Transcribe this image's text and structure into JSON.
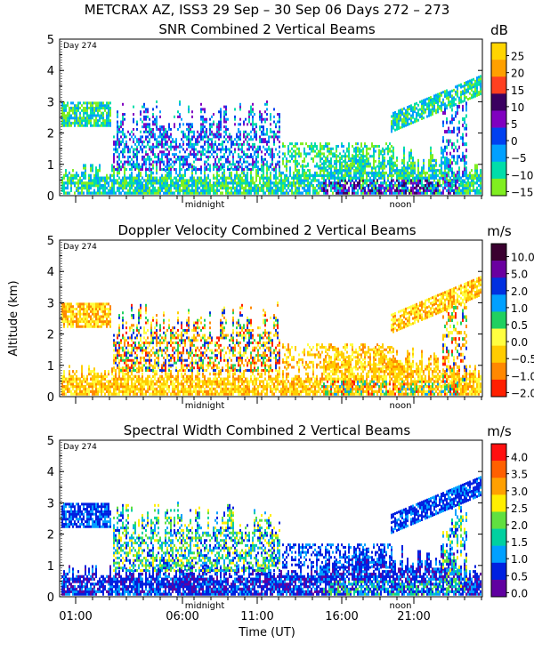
{
  "header": {
    "title": "METCRAX AZ, ISS3  29 Sep – 30 Sep 06 Days 272 – 273"
  },
  "chart_data": [
    {
      "type": "heatmap",
      "title": "SNR Combined 2 Vertical Beams",
      "units": "dB",
      "day_marker": "Day 274",
      "ylabel": "",
      "xlabel": "",
      "ylim": [
        0,
        5
      ],
      "yticks": [
        "0",
        "1",
        "2",
        "3",
        "4",
        "5"
      ],
      "midnight_label": "midnight",
      "noon_label": "noon",
      "colorbar": {
        "labels": [
          "25",
          "20",
          "15",
          "10",
          "5",
          "0",
          "−5",
          "−10",
          "−15"
        ],
        "colors": [
          "#ffd500",
          "#ffa000",
          "#ff4020",
          "#3a0060",
          "#8000c0",
          "#0040f0",
          "#00a0ff",
          "#00ddaa",
          "#80ee20"
        ]
      }
    },
    {
      "type": "heatmap",
      "title": "Doppler Velocity Combined 2 Vertical Beams",
      "units": "m/s",
      "day_marker": "Day 274",
      "ylabel": "Altitude (km)",
      "xlabel": "",
      "ylim": [
        0,
        5
      ],
      "yticks": [
        "0",
        "1",
        "2",
        "3",
        "4",
        "5"
      ],
      "midnight_label": "midnight",
      "noon_label": "noon",
      "colorbar": {
        "labels": [
          "10.0",
          "5.0",
          "2.0",
          "1.0",
          "0.5",
          "0.0",
          "−0.5",
          "−1.0",
          "−2.0"
        ],
        "colors": [
          "#3a0030",
          "#6a00a0",
          "#0030e0",
          "#00a0ff",
          "#20d060",
          "#ffff40",
          "#ffcc00",
          "#ff8800",
          "#ff2000"
        ]
      }
    },
    {
      "type": "heatmap",
      "title": "Spectral Width Combined 2 Vertical Beams",
      "units": "m/s",
      "day_marker": "Day 274",
      "ylabel": "",
      "xlabel": "Time (UT)",
      "ylim": [
        0,
        5
      ],
      "yticks": [
        "0",
        "1",
        "2",
        "3",
        "4",
        "5"
      ],
      "xticks": [
        "01:00",
        "06:00",
        "11:00",
        "16:00",
        "21:00"
      ],
      "midnight_label": "midnight",
      "noon_label": "noon",
      "colorbar": {
        "labels": [
          "4.0",
          "3.5",
          "3.0",
          "2.5",
          "2.0",
          "1.5",
          "1.0",
          "0.5",
          "0.0"
        ],
        "colors": [
          "#ff1010",
          "#ff6000",
          "#ffa000",
          "#ffee00",
          "#60e040",
          "#00d0a0",
          "#00a0ff",
          "#0020e0",
          "#6000a0"
        ]
      }
    }
  ]
}
